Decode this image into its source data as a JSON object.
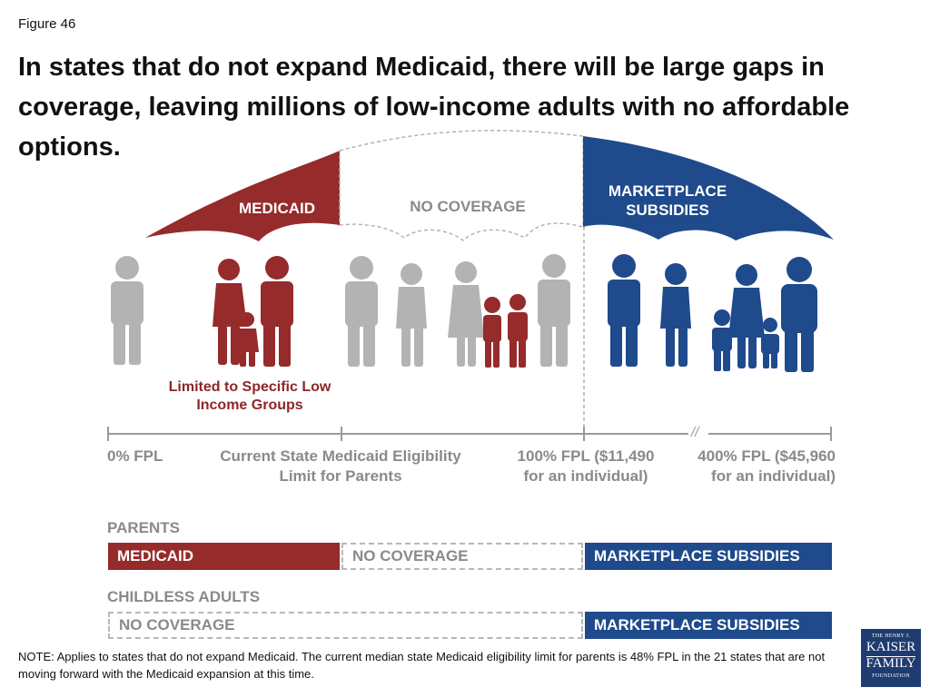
{
  "figure_label": "Figure 46",
  "headline": "In states that do not expand Medicaid, there will be large gaps in coverage, leaving millions of low-income adults with no affordable options.",
  "umbrella": {
    "medicaid": "MEDICAID",
    "no_coverage": "NO COVERAGE",
    "marketplace": "MARKETPLACE SUBSIDIES"
  },
  "limited_note": "Limited to Specific Low Income Groups",
  "axis": {
    "fpl0": "0% FPL",
    "current": "Current State Medicaid Eligibility Limit for Parents",
    "fpl100": "100% FPL ($11,490 for an individual)",
    "break_mark": "//",
    "fpl400": "400% FPL ($45,960 for an individual)"
  },
  "parents": {
    "title": "PARENTS",
    "medicaid": "MEDICAID",
    "no_coverage": "NO COVERAGE",
    "marketplace": "MARKETPLACE SUBSIDIES"
  },
  "childless": {
    "title": "CHILDLESS ADULTS",
    "no_coverage": "NO COVERAGE",
    "marketplace": "MARKETPLACE SUBSIDIES"
  },
  "note": "NOTE: Applies  to states that do not expand Medicaid. The current median state Medicaid eligibility limit for parents is 48% FPL in the 21 states that are not moving forward with the Medicaid expansion at this time.",
  "logo": {
    "line1": "THE HENRY J.",
    "line2": "KAISER",
    "line3": "FAMILY",
    "line4": "FOUNDATION"
  },
  "colors": {
    "medicaid": "#962b2b",
    "marketplace": "#1f4a8c",
    "no_coverage": "#b0b0b0",
    "figures_gray": "#b3b3b3"
  }
}
